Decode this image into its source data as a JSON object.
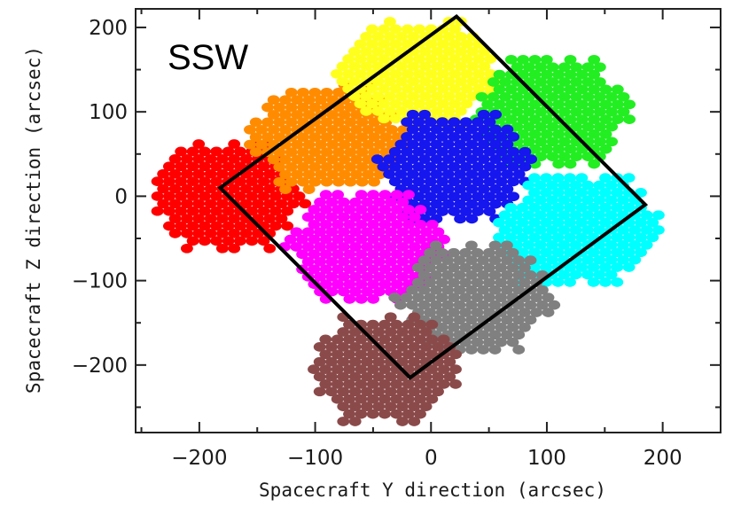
{
  "chart_data": {
    "type": "scatter",
    "title": "",
    "panel_label": "SSW",
    "xlabel": "Spacecraft Y direction (arcsec)",
    "ylabel": "Spacecraft Z direction (arcsec)",
    "xlim": [
      -255,
      250
    ],
    "ylim": [
      -280,
      222
    ],
    "xticks": [
      -200,
      -100,
      0,
      100,
      200
    ],
    "yticks": [
      -200,
      -100,
      0,
      100,
      200
    ],
    "xtick_labels": [
      "−200",
      "−100",
      "0",
      "100",
      "200"
    ],
    "ytick_labels": [
      "−200",
      "−100",
      "0",
      "100",
      "200"
    ],
    "grid": false,
    "legend": "none",
    "pitch_arcsec": 10.2,
    "footprints": [
      {
        "color": "#ff0000",
        "center": [
          -175,
          0
        ],
        "radius": 70
      },
      {
        "color": "#ff8c00",
        "center": [
          -90,
          70
        ],
        "radius": 72
      },
      {
        "color": "#ffff1e",
        "center": [
          -10,
          145
        ],
        "radius": 72
      },
      {
        "color": "#22ee22",
        "center": [
          105,
          100
        ],
        "radius": 72
      },
      {
        "color": "#1616ee",
        "center": [
          20,
          35
        ],
        "radius": 72
      },
      {
        "color": "#ff00ff",
        "center": [
          -55,
          -60
        ],
        "radius": 72
      },
      {
        "color": "#00ffff",
        "center": [
          125,
          -40
        ],
        "radius": 75
      },
      {
        "color": "#808080",
        "center": [
          40,
          -120
        ],
        "radius": 72
      },
      {
        "color": "#8b4a4a",
        "center": [
          -40,
          -205
        ],
        "radius": 70
      }
    ],
    "outline": {
      "type": "polygon",
      "color": "#000000",
      "points": [
        [
          22,
          213
        ],
        [
          185,
          -10
        ],
        [
          -18,
          -215
        ],
        [
          -182,
          10
        ]
      ]
    }
  }
}
